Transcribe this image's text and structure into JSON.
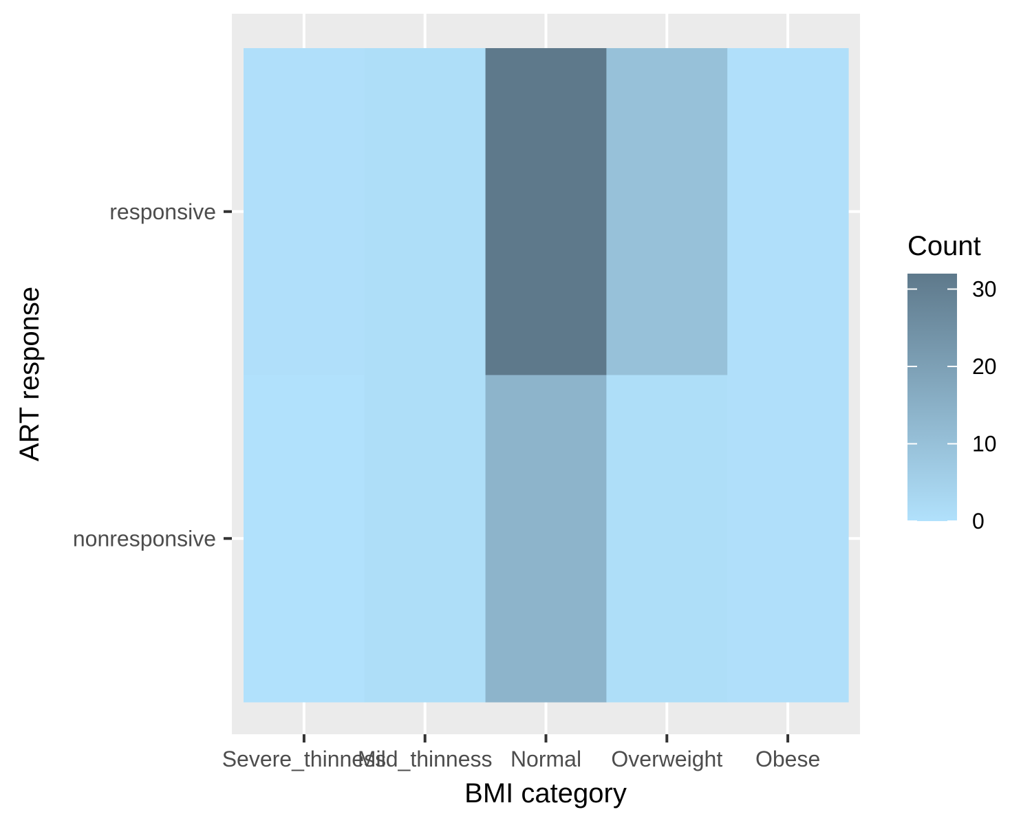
{
  "chart_data": {
    "type": "heatmap",
    "title": "",
    "xlabel": "BMI category",
    "ylabel": "ART response",
    "x_categories": [
      "Severe_thinness",
      "Mild_thinness",
      "Normal",
      "Overweight",
      "Obese"
    ],
    "y_categories": [
      "nonresponsive",
      "responsive"
    ],
    "values": [
      {
        "x": "Severe_thinness",
        "y": "responsive",
        "value": 0.5
      },
      {
        "x": "Mild_thinness",
        "y": "responsive",
        "value": 1
      },
      {
        "x": "Normal",
        "y": "responsive",
        "value": 32
      },
      {
        "x": "Overweight",
        "y": "responsive",
        "value": 10
      },
      {
        "x": "Obese",
        "y": "responsive",
        "value": 0.5
      },
      {
        "x": "Severe_thinness",
        "y": "nonresponsive",
        "value": 0
      },
      {
        "x": "Mild_thinness",
        "y": "nonresponsive",
        "value": 1
      },
      {
        "x": "Normal",
        "y": "nonresponsive",
        "value": 14
      },
      {
        "x": "Overweight",
        "y": "nonresponsive",
        "value": 1
      },
      {
        "x": "Obese",
        "y": "nonresponsive",
        "value": 0.5
      }
    ],
    "legend": {
      "title": "Count",
      "ticks": [
        0,
        10,
        20,
        30
      ],
      "range": [
        0,
        32
      ],
      "placement": "right"
    },
    "colors": {
      "low": "#b1e1fc",
      "high": "#5e798b",
      "panel": "#ebebeb",
      "grid": "#ffffff"
    },
    "grid": true
  }
}
